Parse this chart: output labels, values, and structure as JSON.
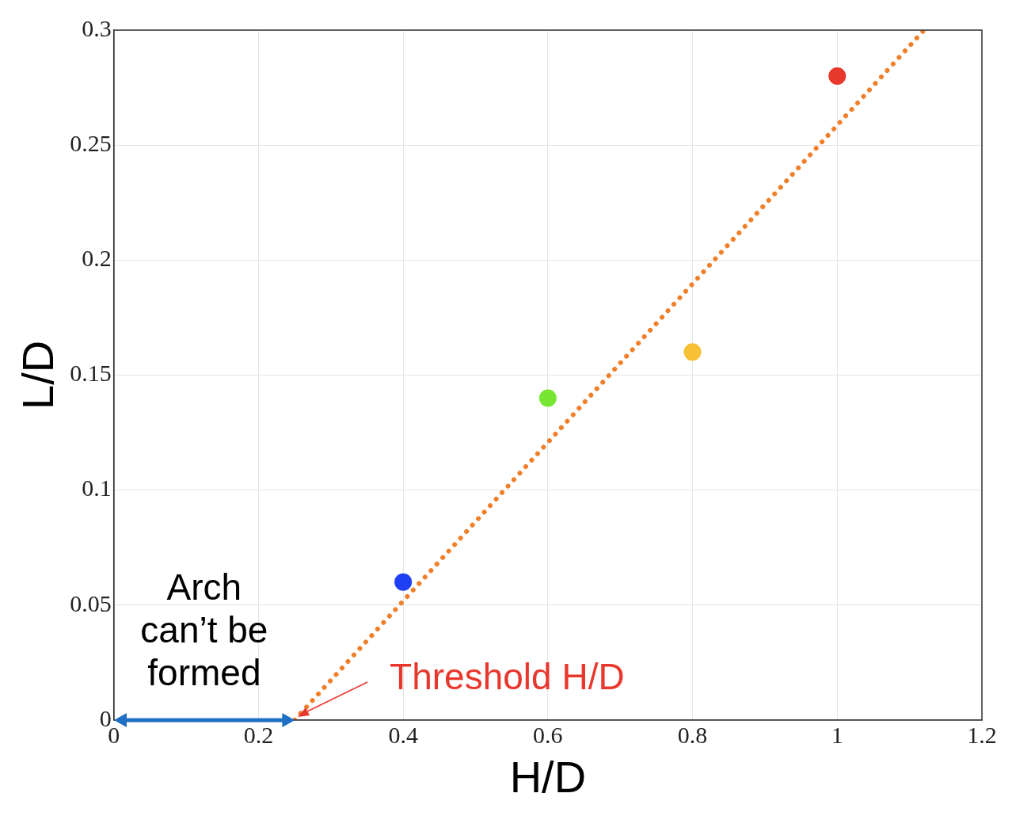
{
  "chart_data": {
    "type": "scatter",
    "xlabel": "H/D",
    "ylabel": "L/D",
    "xlim": [
      0,
      1.2
    ],
    "ylim": [
      0,
      0.3
    ],
    "xticks": [
      0,
      0.2,
      0.4,
      0.6,
      0.8,
      1,
      1.2
    ],
    "yticks": [
      0,
      0.05,
      0.1,
      0.15,
      0.2,
      0.25,
      0.3
    ],
    "grid": true,
    "legend": false,
    "series": [
      {
        "type": "scatter",
        "x": [
          0.4,
          0.6,
          0.8,
          1
        ],
        "values": [
          0.06,
          0.14,
          0.16,
          0.28
        ],
        "colors": [
          "#1f3ff5",
          "#77e632",
          "#f7c035",
          "#e8372c"
        ],
        "marker": "circle"
      },
      {
        "type": "line",
        "x": [
          0.25,
          1.12
        ],
        "values": [
          0,
          0.3
        ],
        "color": "#f07f2a",
        "line_style": "dotted",
        "marker": "none"
      }
    ],
    "annotations": [
      {
        "text": "Threshold H/D",
        "x": 0.25,
        "y": 0
      },
      "Arch can’t be formed"
    ]
  }
}
